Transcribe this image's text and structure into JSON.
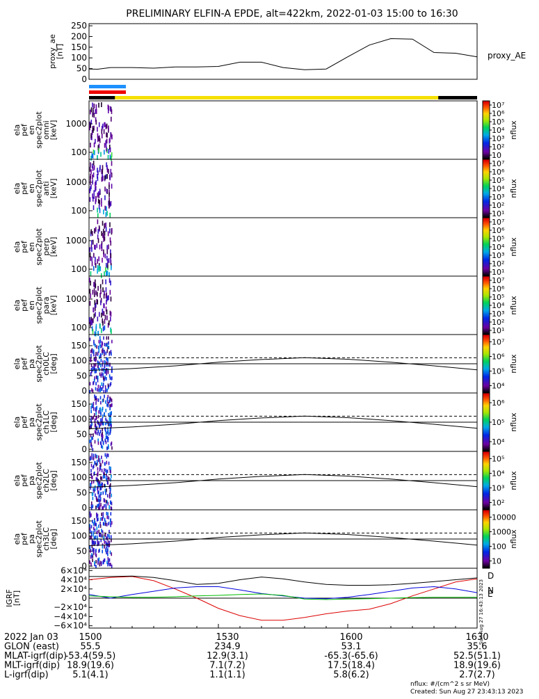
{
  "title": "PRELIMINARY ELFIN-A EPDE, alt=422km, 2022-01-03 15:00 to 16:30",
  "colors": {
    "ae_line": "#000000",
    "bar_blue": "#1e90ff",
    "bar_red": "#ee0000",
    "bar_yellow": "#f5e000",
    "bar_black": "#000000",
    "grf_d": "#dd0000",
    "grf_n": "#0000dd",
    "grf_e": "#00bb00",
    "grf_total": "#000000"
  },
  "status_bars": {
    "blue": {
      "start": "15:00",
      "end": "15:05"
    },
    "red": {
      "start": "15:00",
      "end": "15:05"
    },
    "science": {
      "start": "15:00",
      "end": "16:30",
      "yellow_start": "15:06",
      "yellow_end": "16:21"
    }
  },
  "chart_data": [
    {
      "type": "line",
      "name": "proxy_ae",
      "ylabel": "proxy_ae\n[nT]",
      "legend": "proxy_AE",
      "ylim": [
        0,
        260
      ],
      "yticks": [
        "0",
        "50",
        "100",
        "150",
        "200",
        "250"
      ],
      "x_minutes": [
        0,
        2,
        5,
        10,
        15,
        20,
        25,
        30,
        35,
        40,
        45,
        50,
        55,
        60,
        65,
        70,
        75,
        80,
        85,
        90
      ],
      "values": [
        48,
        47,
        55,
        55,
        52,
        58,
        58,
        60,
        80,
        80,
        55,
        45,
        48,
        105,
        160,
        190,
        188,
        125,
        122,
        105
      ]
    },
    {
      "type": "heatmap",
      "name": "omni",
      "ylabel": "ela\npef\nen\nspec2plot\nomni\n[keV]",
      "yscale": "log",
      "yticks": [
        "100",
        "1000"
      ],
      "colorbar": {
        "label": "nflux",
        "ticks": [
          "10",
          "10²",
          "10³",
          "10⁴",
          "10⁵",
          "10⁶",
          "10⁷"
        ]
      }
    },
    {
      "type": "heatmap",
      "name": "anti",
      "ylabel": "ela\npef\nen\nspec2plot\nanti\n[keV]",
      "yscale": "log",
      "yticks": [
        "100",
        "1000"
      ],
      "colorbar": {
        "label": "nflux",
        "ticks": [
          "10¹",
          "10²",
          "10³",
          "10⁴",
          "10⁵",
          "10⁶",
          "10⁷"
        ]
      }
    },
    {
      "type": "heatmap",
      "name": "perp",
      "ylabel": "ela\npef\nen\nspec2plot\nperp\n[keV]",
      "yscale": "log",
      "yticks": [
        "100",
        "1000"
      ],
      "colorbar": {
        "label": "nflux",
        "ticks": [
          "10¹",
          "10²",
          "10³",
          "10⁴",
          "10⁵",
          "10⁶",
          "10⁷"
        ]
      }
    },
    {
      "type": "heatmap",
      "name": "para",
      "ylabel": "ela\npef\nen\nspec2plot\npara\n[keV]",
      "yscale": "log",
      "yticks": [
        "100",
        "1000"
      ],
      "colorbar": {
        "label": "nflux",
        "ticks": [
          "10¹",
          "10²",
          "10³",
          "10⁴",
          "10⁵",
          "10⁶",
          "10⁷"
        ]
      }
    },
    {
      "type": "heatmap",
      "name": "ch0LC",
      "ylabel": "ela\npef\npa\nspec2plot\nch0LC\n[deg]",
      "ylim": [
        0,
        180
      ],
      "yticks": [
        "0",
        "50",
        "100",
        "150"
      ],
      "colorbar": {
        "label": "nflux",
        "ticks": [
          "10⁴",
          "10⁵",
          "10⁶",
          "10⁷"
        ]
      }
    },
    {
      "type": "heatmap",
      "name": "ch1LC",
      "ylabel": "ela\npef\npa\nspec2plot\nch1LC\n[deg]",
      "ylim": [
        0,
        180
      ],
      "yticks": [
        "0",
        "50",
        "100",
        "150"
      ],
      "colorbar": {
        "label": "nflux",
        "ticks": [
          "10⁴",
          "10⁵",
          "10⁶"
        ]
      }
    },
    {
      "type": "heatmap",
      "name": "ch2LC",
      "ylabel": "ela\npef\npa\nspec2plot\nch2LC\n[deg]",
      "ylim": [
        0,
        180
      ],
      "yticks": [
        "0",
        "50",
        "100",
        "150"
      ],
      "colorbar": {
        "label": "nflux",
        "ticks": [
          "10²",
          "10³",
          "10⁴",
          "10⁵"
        ]
      }
    },
    {
      "type": "heatmap",
      "name": "ch3LC",
      "ylabel": "ela\npef\npa\nspec2plot\nch3LC\n[deg]",
      "ylim": [
        0,
        180
      ],
      "yticks": [
        "0",
        "50",
        "100",
        "150"
      ],
      "colorbar": {
        "label": "nflux",
        "ticks": [
          "10",
          "100",
          "1000",
          "10000"
        ]
      }
    },
    {
      "type": "line",
      "name": "IGRF",
      "ylabel": "IGRF\n[nT]",
      "ylim": [
        -65000,
        65000
      ],
      "yticks": [
        "−6×10⁴",
        "−4×10⁴",
        "−2×10⁴",
        "0",
        "2×10⁴",
        "4×10⁴",
        "6×10⁴"
      ],
      "x_minutes": [
        0,
        5,
        10,
        15,
        20,
        25,
        30,
        35,
        40,
        45,
        50,
        55,
        60,
        65,
        70,
        75,
        80,
        85,
        90
      ],
      "series": [
        {
          "name": "D",
          "values": [
            40000,
            45000,
            47000,
            38000,
            20000,
            0,
            -22000,
            -38000,
            -48000,
            -48000,
            -42000,
            -34000,
            -28000,
            -24000,
            -12000,
            5000,
            20000,
            35000,
            42000
          ]
        },
        {
          "name": "N",
          "values": [
            8000,
            0,
            8000,
            15000,
            22000,
            25000,
            25000,
            18000,
            10000,
            5000,
            0,
            -1000,
            2000,
            8000,
            15000,
            22000,
            25000,
            20000,
            12000
          ]
        },
        {
          "name": "E",
          "values": [
            5000,
            3000,
            2000,
            2000,
            3000,
            5000,
            6000,
            8000,
            9000,
            6000,
            -2000,
            -3000,
            -2000,
            -1000,
            0,
            1000,
            2000,
            2000,
            2000
          ]
        },
        {
          "name": "total",
          "values": [
            47000,
            47000,
            48000,
            45000,
            38000,
            30000,
            32000,
            40000,
            46000,
            42000,
            35000,
            30000,
            28000,
            28000,
            29000,
            32000,
            36000,
            40000,
            44000
          ]
        }
      ],
      "legend": [
        "D",
        "N",
        "E"
      ]
    }
  ],
  "footer": {
    "stamp": "Sun Aug 27 16:43:13 2023",
    "rows": [
      {
        "label": "2022 Jan 03",
        "values": [
          "1500",
          "1530",
          "1600",
          "1630"
        ]
      },
      {
        "label": "GLON (east)",
        "values": [
          "55.5",
          "234.9",
          "53.1",
          "35.6"
        ]
      },
      {
        "label": "MLAT-igrf(dip)",
        "values": [
          "-53.4(59.5)",
          "12.9(3.1)",
          "-65.3(-65.6)",
          "52.5(51.1)"
        ]
      },
      {
        "label": "MLT-igrf(dip)",
        "values": [
          "18.9(19.6)",
          "7.1(7.2)",
          "17.5(18.4)",
          "18.9(19.6)"
        ]
      },
      {
        "label": "L-igrf(dip)",
        "values": [
          "5.1(4.1)",
          "1.1(1.1)",
          "5.8(6.2)",
          "2.7(2.7)"
        ]
      }
    ],
    "note_1": "nflux: #/(cm^2 s sr MeV)",
    "note_2": "Created: Sun Aug 27 23:43:13 2023"
  }
}
